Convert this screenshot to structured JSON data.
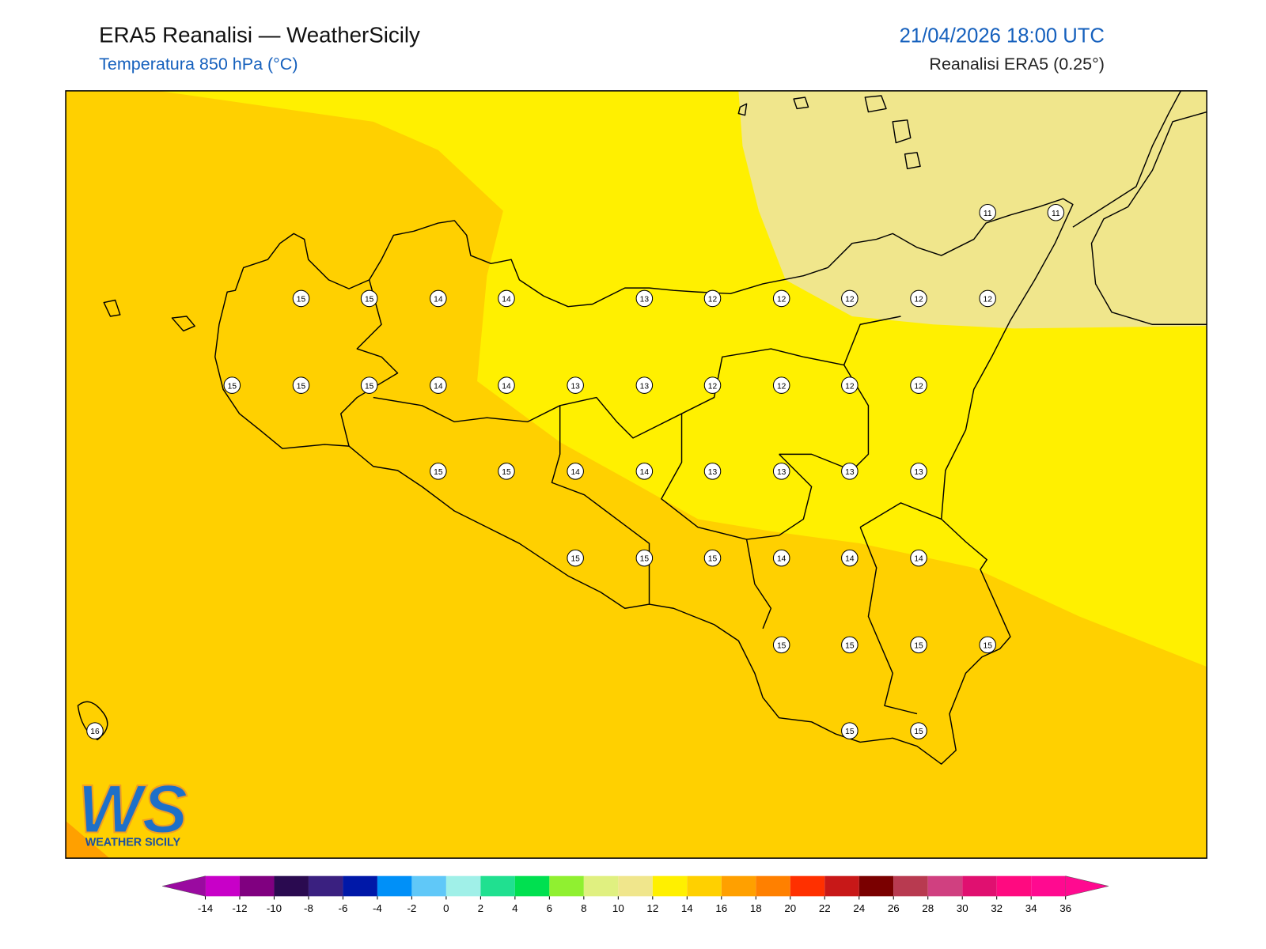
{
  "header": {
    "title": "ERA5 Reanalisi — WeatherSicily",
    "subtitle": "Temperatura 850 hPa (°C)",
    "datetime": "21/04/2026 18:00 UTC",
    "source": "Reanalisi ERA5 (0.25°)"
  },
  "map": {
    "stations": [
      11,
      11,
      15,
      15,
      14,
      14,
      13,
      12,
      12,
      12,
      12,
      12,
      15,
      15,
      15,
      14,
      14,
      13,
      13,
      12,
      12,
      12,
      12,
      15,
      15,
      14,
      14,
      13,
      13,
      13,
      13,
      15,
      15,
      15,
      14,
      14,
      14,
      15,
      15,
      15,
      15,
      16,
      15,
      15
    ]
  },
  "logo": {
    "mark": "WS",
    "name": "WEATHER SICILY"
  },
  "colorbar": {
    "ticks": [
      -14,
      -12,
      -10,
      -8,
      -6,
      -4,
      -2,
      0,
      2,
      4,
      6,
      8,
      10,
      12,
      14,
      16,
      18,
      20,
      22,
      24,
      26,
      28,
      30,
      32,
      34,
      36
    ],
    "colors": [
      "#c800c8",
      "#800080",
      "#2a0a50",
      "#3a2080",
      "#0018a8",
      "#0090f8",
      "#60c8f8",
      "#a0f0e8",
      "#20e090",
      "#00e050",
      "#90f030",
      "#e0f080",
      "#f0e68c",
      "#fff000",
      "#ffd000",
      "#ffa000",
      "#ff8000",
      "#ff3000",
      "#c81818",
      "#7a0000",
      "#b83a50",
      "#d04080",
      "#e01070",
      "#ff0a80",
      "#ff0a90"
    ],
    "under_color": "#9a0aa0",
    "over_color": "#ff0a90"
  }
}
